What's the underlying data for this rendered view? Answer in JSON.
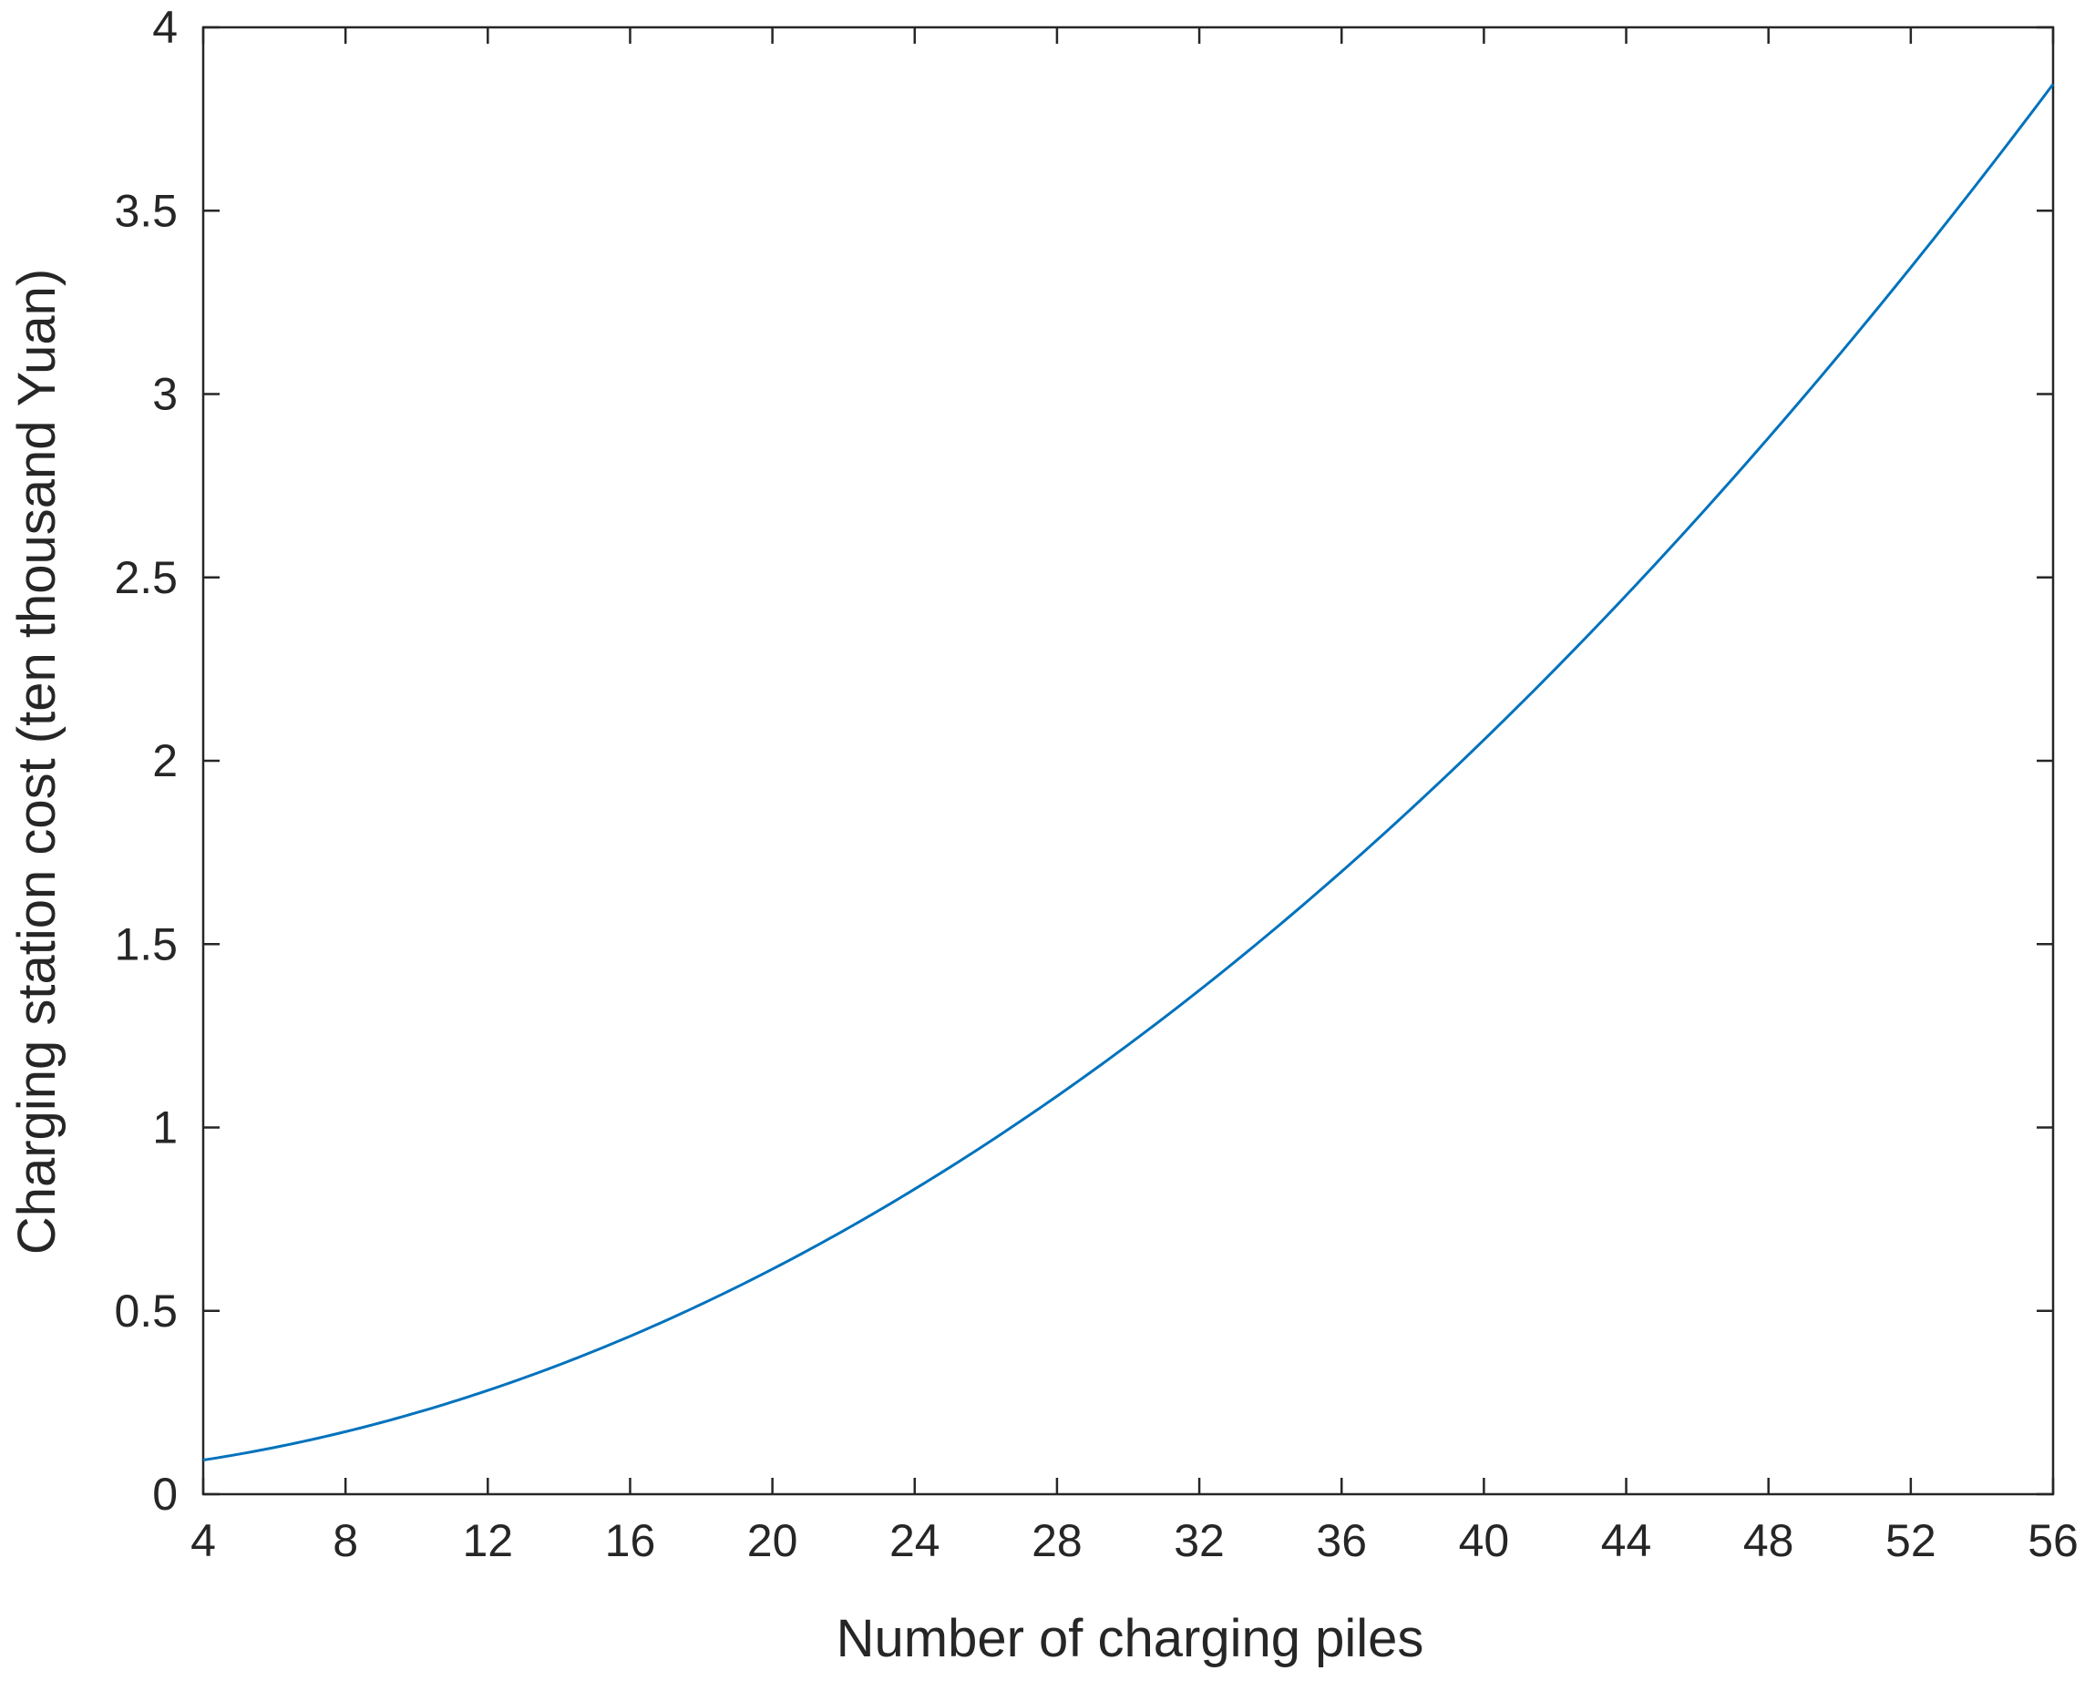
{
  "chart_data": {
    "type": "line",
    "title": "",
    "xlabel": "Number of charging piles",
    "ylabel": "Charging station cost (ten thousand Yuan)",
    "xlim": [
      4,
      56
    ],
    "ylim": [
      0,
      4
    ],
    "xticks": [
      4,
      8,
      12,
      16,
      20,
      24,
      28,
      32,
      36,
      40,
      44,
      48,
      52,
      56
    ],
    "yticks": [
      0,
      0.5,
      1,
      1.5,
      2,
      2.5,
      3,
      3.5,
      4
    ],
    "xtick_labels": [
      "4",
      "8",
      "12",
      "16",
      "20",
      "24",
      "28",
      "32",
      "36",
      "40",
      "44",
      "48",
      "52",
      "56"
    ],
    "ytick_labels": [
      "0",
      "0.5",
      "1",
      "1.5",
      "2",
      "2.5",
      "3",
      "3.5",
      "4"
    ],
    "grid": false,
    "series": [
      {
        "color": "#0072BD",
        "x": [
          4,
          8,
          12,
          16,
          20,
          24,
          28,
          32,
          36,
          40,
          44,
          48,
          52,
          56
        ],
        "y": [
          0.1,
          0.17,
          0.28,
          0.43,
          0.61,
          0.83,
          1.08,
          1.37,
          1.7,
          2.06,
          2.46,
          2.89,
          3.35,
          3.83
        ]
      }
    ]
  }
}
